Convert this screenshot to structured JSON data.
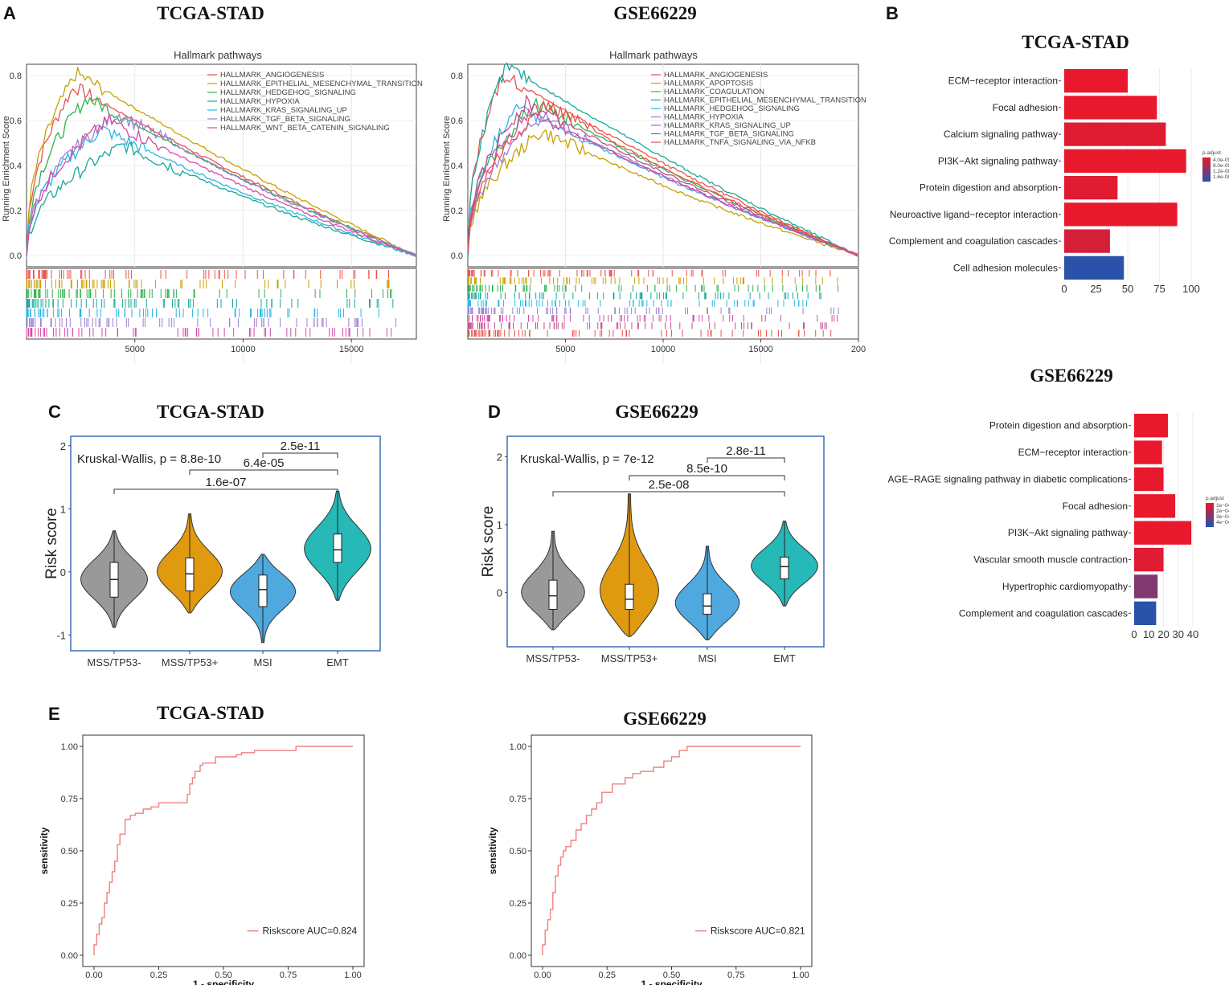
{
  "panels": {
    "A": "A",
    "B": "B",
    "C": "C",
    "D": "D",
    "E": "E"
  },
  "colors": {
    "gsea": [
      "#e8524a",
      "#c8a000",
      "#2db34a",
      "#17a89a",
      "#29b6e6",
      "#9b7fd1",
      "#d84aa8",
      "#c04f8f"
    ],
    "violin": {
      "MSS/TP53-": "#999999",
      "MSS/TP53+": "#e09a10",
      "MSI": "#4fa8de",
      "EMT": "#27b8b8"
    },
    "bar_high": "#e8192c",
    "bar_low": "#2a52a8",
    "roc": "#f08080",
    "box": "#3a6fb5"
  },
  "chart_data": [
    {
      "id": "A1",
      "type": "line",
      "panel_title": "TCGA-STAD",
      "title": "Hallmark pathways",
      "ylabel": "Running Enrichment Score",
      "ylim": [
        -0.05,
        0.85
      ],
      "yticks": [
        "0.0",
        "0.2",
        "0.4",
        "0.6",
        "0.8"
      ],
      "xlim": [
        0,
        18000
      ],
      "xticks": [
        "5000",
        "10000",
        "15000"
      ],
      "series": [
        {
          "name": "HALLMARK_ANGIOGENESIS",
          "peak_x": 2200,
          "peak": 0.75
        },
        {
          "name": "HALLMARK_EPITHELIAL_MESENCHYMAL_TRANSITION",
          "peak_x": 2300,
          "peak": 0.81
        },
        {
          "name": "HALLMARK_HEDGEHOG_SIGNALING",
          "peak_x": 2800,
          "peak": 0.7
        },
        {
          "name": "HALLMARK_HYPOXIA",
          "peak_x": 4500,
          "peak": 0.49
        },
        {
          "name": "HALLMARK_KRAS_SIGNALING_UP",
          "peak_x": 3500,
          "peak": 0.56
        },
        {
          "name": "HALLMARK_TGF_BETA_SIGNALING",
          "peak_x": 4200,
          "peak": 0.63
        },
        {
          "name": "HALLMARK_WNT_BETA_CATENIN_SIGNALING",
          "peak_x": 3800,
          "peak": 0.6
        }
      ]
    },
    {
      "id": "A2",
      "type": "line",
      "panel_title": "GSE66229",
      "title": "Hallmark pathways",
      "ylabel": "Running Enrichment Score",
      "ylim": [
        -0.05,
        0.85
      ],
      "yticks": [
        "0.0",
        "0.2",
        "0.4",
        "0.6",
        "0.8"
      ],
      "xlim": [
        0,
        20000
      ],
      "xticks": [
        "5000",
        "10000",
        "15000",
        "200"
      ],
      "series": [
        {
          "name": "HALLMARK_ANGIOGENESIS",
          "peak_x": 1800,
          "peak": 0.8
        },
        {
          "name": "HALLMARK_APOPTOSIS",
          "peak_x": 3800,
          "peak": 0.55
        },
        {
          "name": "HALLMARK_COAGULATION",
          "peak_x": 3500,
          "peak": 0.68
        },
        {
          "name": "HALLMARK_EPITHELIAL_MESENCHYMAL_TRANSITION",
          "peak_x": 2000,
          "peak": 0.84
        },
        {
          "name": "HALLMARK_HEDGEHOG_SIGNALING",
          "peak_x": 2500,
          "peak": 0.66
        },
        {
          "name": "HALLMARK_HYPOXIA",
          "peak_x": 3800,
          "peak": 0.62
        },
        {
          "name": "HALLMARK_KRAS_SIGNALING_UP",
          "peak_x": 3200,
          "peak": 0.64
        },
        {
          "name": "HALLMARK_TGF_BETA_SIGNALING",
          "peak_x": 3000,
          "peak": 0.68
        },
        {
          "name": "HALLMARK_TNFA_SIGNALING_VIA_NFKB",
          "peak_x": 4000,
          "peak": 0.67
        }
      ]
    },
    {
      "id": "B1",
      "type": "bar",
      "orientation": "horizontal",
      "panel_title": "TCGA-STAD",
      "categories": [
        "ECM−receptor interaction",
        "Focal adhesion",
        "Calcium signaling pathway",
        "PI3K−Akt signaling pathway",
        "Protein digestion and absorption",
        "Neuroactive ligand−receptor interaction",
        "Complement and coagulation cascades",
        "Cell adhesion molecules"
      ],
      "values": [
        50,
        73,
        80,
        96,
        42,
        89,
        36,
        47
      ],
      "padj_rank": [
        0,
        0,
        0.05,
        0,
        0.05,
        0,
        0.1,
        1
      ],
      "xlim": [
        0,
        100
      ],
      "xticks": [
        "0",
        "25",
        "50",
        "75",
        "100"
      ],
      "legend_title": "p.adjust",
      "legend_ticks": [
        "4.0e-09",
        "8.0e-09",
        "1.2e-08",
        "1.6e-08"
      ]
    },
    {
      "id": "B2",
      "type": "bar",
      "orientation": "horizontal",
      "panel_title": "GSE66229",
      "categories": [
        "Protein digestion and absorption",
        "ECM−receptor interaction",
        "AGE−RAGE signaling pathway in diabetic complications",
        "Focal adhesion",
        "PI3K−Akt signaling pathway",
        "Vascular smooth muscle contraction",
        "Hypertrophic cardiomyopathy",
        "Complement and coagulation cascades"
      ],
      "values": [
        23,
        19,
        20,
        28,
        39,
        20,
        16,
        15
      ],
      "padj_rank": [
        0,
        0,
        0,
        0,
        0,
        0.05,
        0.55,
        1
      ],
      "xlim": [
        0,
        40
      ],
      "xticks": [
        "0",
        "10",
        "20",
        "30",
        "40"
      ],
      "legend_title": "p.adjust",
      "legend_ticks": [
        "1e−04",
        "2e−04",
        "3e−04",
        "4e−04"
      ]
    },
    {
      "id": "C",
      "type": "violin",
      "panel_title": "TCGA-STAD",
      "categories": [
        "MSS/TP53-",
        "MSS/TP53+",
        "MSI",
        "EMT"
      ],
      "median": [
        -0.12,
        -0.03,
        -0.28,
        0.35
      ],
      "q1": [
        -0.4,
        -0.3,
        -0.55,
        0.15
      ],
      "q3": [
        0.15,
        0.22,
        -0.05,
        0.6
      ],
      "min": [
        -0.88,
        -0.65,
        -1.12,
        -0.45
      ],
      "max": [
        0.65,
        0.92,
        0.28,
        1.28
      ],
      "ylabel": "Risk score",
      "ylim": [
        -1.25,
        2.15
      ],
      "yticks": [
        "-1",
        "0",
        "1",
        "2"
      ],
      "test": "Kruskal-Wallis, p = 8.8e-10",
      "comparisons": [
        {
          "label": "2.5e-11",
          "from": "MSI",
          "to": "EMT"
        },
        {
          "label": "6.4e-05",
          "from": "MSS/TP53+",
          "to": "EMT"
        },
        {
          "label": "1.6e-07",
          "from": "MSS/TP53-",
          "to": "EMT"
        }
      ]
    },
    {
      "id": "D",
      "type": "violin",
      "panel_title": "GSE66229",
      "categories": [
        "MSS/TP53-",
        "MSS/TP53+",
        "MSI",
        "EMT"
      ],
      "median": [
        -0.05,
        -0.1,
        -0.2,
        0.38
      ],
      "q1": [
        -0.25,
        -0.25,
        -0.32,
        0.2
      ],
      "q3": [
        0.18,
        0.12,
        -0.02,
        0.52
      ],
      "min": [
        -0.55,
        -0.65,
        -0.7,
        -0.2
      ],
      "max": [
        0.9,
        1.45,
        0.68,
        1.05
      ],
      "ylabel": "Risk score",
      "ylim": [
        -0.8,
        2.3
      ],
      "yticks": [
        "0",
        "1",
        "2"
      ],
      "test": "Kruskal-Wallis, p = 7e-12",
      "comparisons": [
        {
          "label": "2.8e-11",
          "from": "MSI",
          "to": "EMT"
        },
        {
          "label": "8.5e-10",
          "from": "MSS/TP53+",
          "to": "EMT"
        },
        {
          "label": "2.5e-08",
          "from": "MSS/TP53-",
          "to": "EMT"
        }
      ]
    },
    {
      "id": "E1",
      "type": "line",
      "panel_title": "TCGA-STAD",
      "subtype": "roc",
      "xlabel": "1 - specificity",
      "ylabel": "sensitivity",
      "xticks": [
        "0.00",
        "0.25",
        "0.50",
        "0.75",
        "1.00"
      ],
      "yticks": [
        "0.00",
        "0.25",
        "0.50",
        "0.75",
        "1.00"
      ],
      "legend": "Riskscore AUC=0.824",
      "x": [
        0,
        0,
        0.01,
        0.01,
        0.02,
        0.02,
        0.03,
        0.03,
        0.04,
        0.04,
        0.05,
        0.05,
        0.06,
        0.06,
        0.07,
        0.07,
        0.08,
        0.08,
        0.09,
        0.09,
        0.1,
        0.1,
        0.12,
        0.12,
        0.14,
        0.14,
        0.16,
        0.16,
        0.19,
        0.19,
        0.22,
        0.22,
        0.25,
        0.25,
        0.28,
        0.28,
        0.3,
        0.3,
        0.36,
        0.36,
        0.37,
        0.37,
        0.38,
        0.38,
        0.39,
        0.39,
        0.41,
        0.41,
        0.42,
        0.42,
        0.47,
        0.47,
        0.55,
        0.55,
        0.57,
        0.57,
        0.62,
        0.62,
        0.65,
        0.65,
        0.78,
        0.78,
        1.0
      ],
      "y": [
        0,
        0.05,
        0.05,
        0.1,
        0.1,
        0.15,
        0.15,
        0.18,
        0.18,
        0.25,
        0.25,
        0.3,
        0.3,
        0.35,
        0.35,
        0.4,
        0.4,
        0.45,
        0.45,
        0.53,
        0.53,
        0.58,
        0.58,
        0.65,
        0.65,
        0.67,
        0.67,
        0.68,
        0.68,
        0.7,
        0.7,
        0.71,
        0.71,
        0.73,
        0.73,
        0.73,
        0.73,
        0.73,
        0.73,
        0.77,
        0.77,
        0.82,
        0.82,
        0.85,
        0.85,
        0.88,
        0.88,
        0.91,
        0.91,
        0.92,
        0.92,
        0.95,
        0.95,
        0.96,
        0.96,
        0.97,
        0.97,
        0.98,
        0.98,
        0.98,
        0.98,
        1.0,
        1.0
      ]
    },
    {
      "id": "E2",
      "type": "line",
      "panel_title": "GSE66229",
      "subtype": "roc",
      "xlabel": "1 - specificity",
      "ylabel": "sensitivity",
      "xticks": [
        "0.00",
        "0.25",
        "0.50",
        "0.75",
        "1.00"
      ],
      "yticks": [
        "0.00",
        "0.25",
        "0.50",
        "0.75",
        "1.00"
      ],
      "legend": "Riskscore AUC=0.821",
      "x": [
        0,
        0,
        0.01,
        0.01,
        0.02,
        0.02,
        0.03,
        0.03,
        0.04,
        0.04,
        0.05,
        0.05,
        0.06,
        0.06,
        0.07,
        0.07,
        0.08,
        0.08,
        0.09,
        0.09,
        0.11,
        0.11,
        0.13,
        0.13,
        0.15,
        0.15,
        0.17,
        0.17,
        0.19,
        0.19,
        0.21,
        0.21,
        0.23,
        0.23,
        0.27,
        0.27,
        0.32,
        0.32,
        0.35,
        0.35,
        0.38,
        0.38,
        0.43,
        0.43,
        0.47,
        0.47,
        0.5,
        0.5,
        0.53,
        0.53,
        0.56,
        0.56,
        1.0
      ],
      "y": [
        0,
        0.05,
        0.05,
        0.12,
        0.12,
        0.17,
        0.17,
        0.22,
        0.22,
        0.3,
        0.3,
        0.38,
        0.38,
        0.43,
        0.43,
        0.47,
        0.47,
        0.5,
        0.5,
        0.52,
        0.52,
        0.55,
        0.55,
        0.6,
        0.6,
        0.63,
        0.63,
        0.67,
        0.67,
        0.7,
        0.7,
        0.73,
        0.73,
        0.78,
        0.78,
        0.82,
        0.82,
        0.85,
        0.85,
        0.87,
        0.87,
        0.88,
        0.88,
        0.9,
        0.9,
        0.93,
        0.93,
        0.95,
        0.95,
        0.98,
        0.98,
        1.0,
        1.0
      ]
    }
  ]
}
